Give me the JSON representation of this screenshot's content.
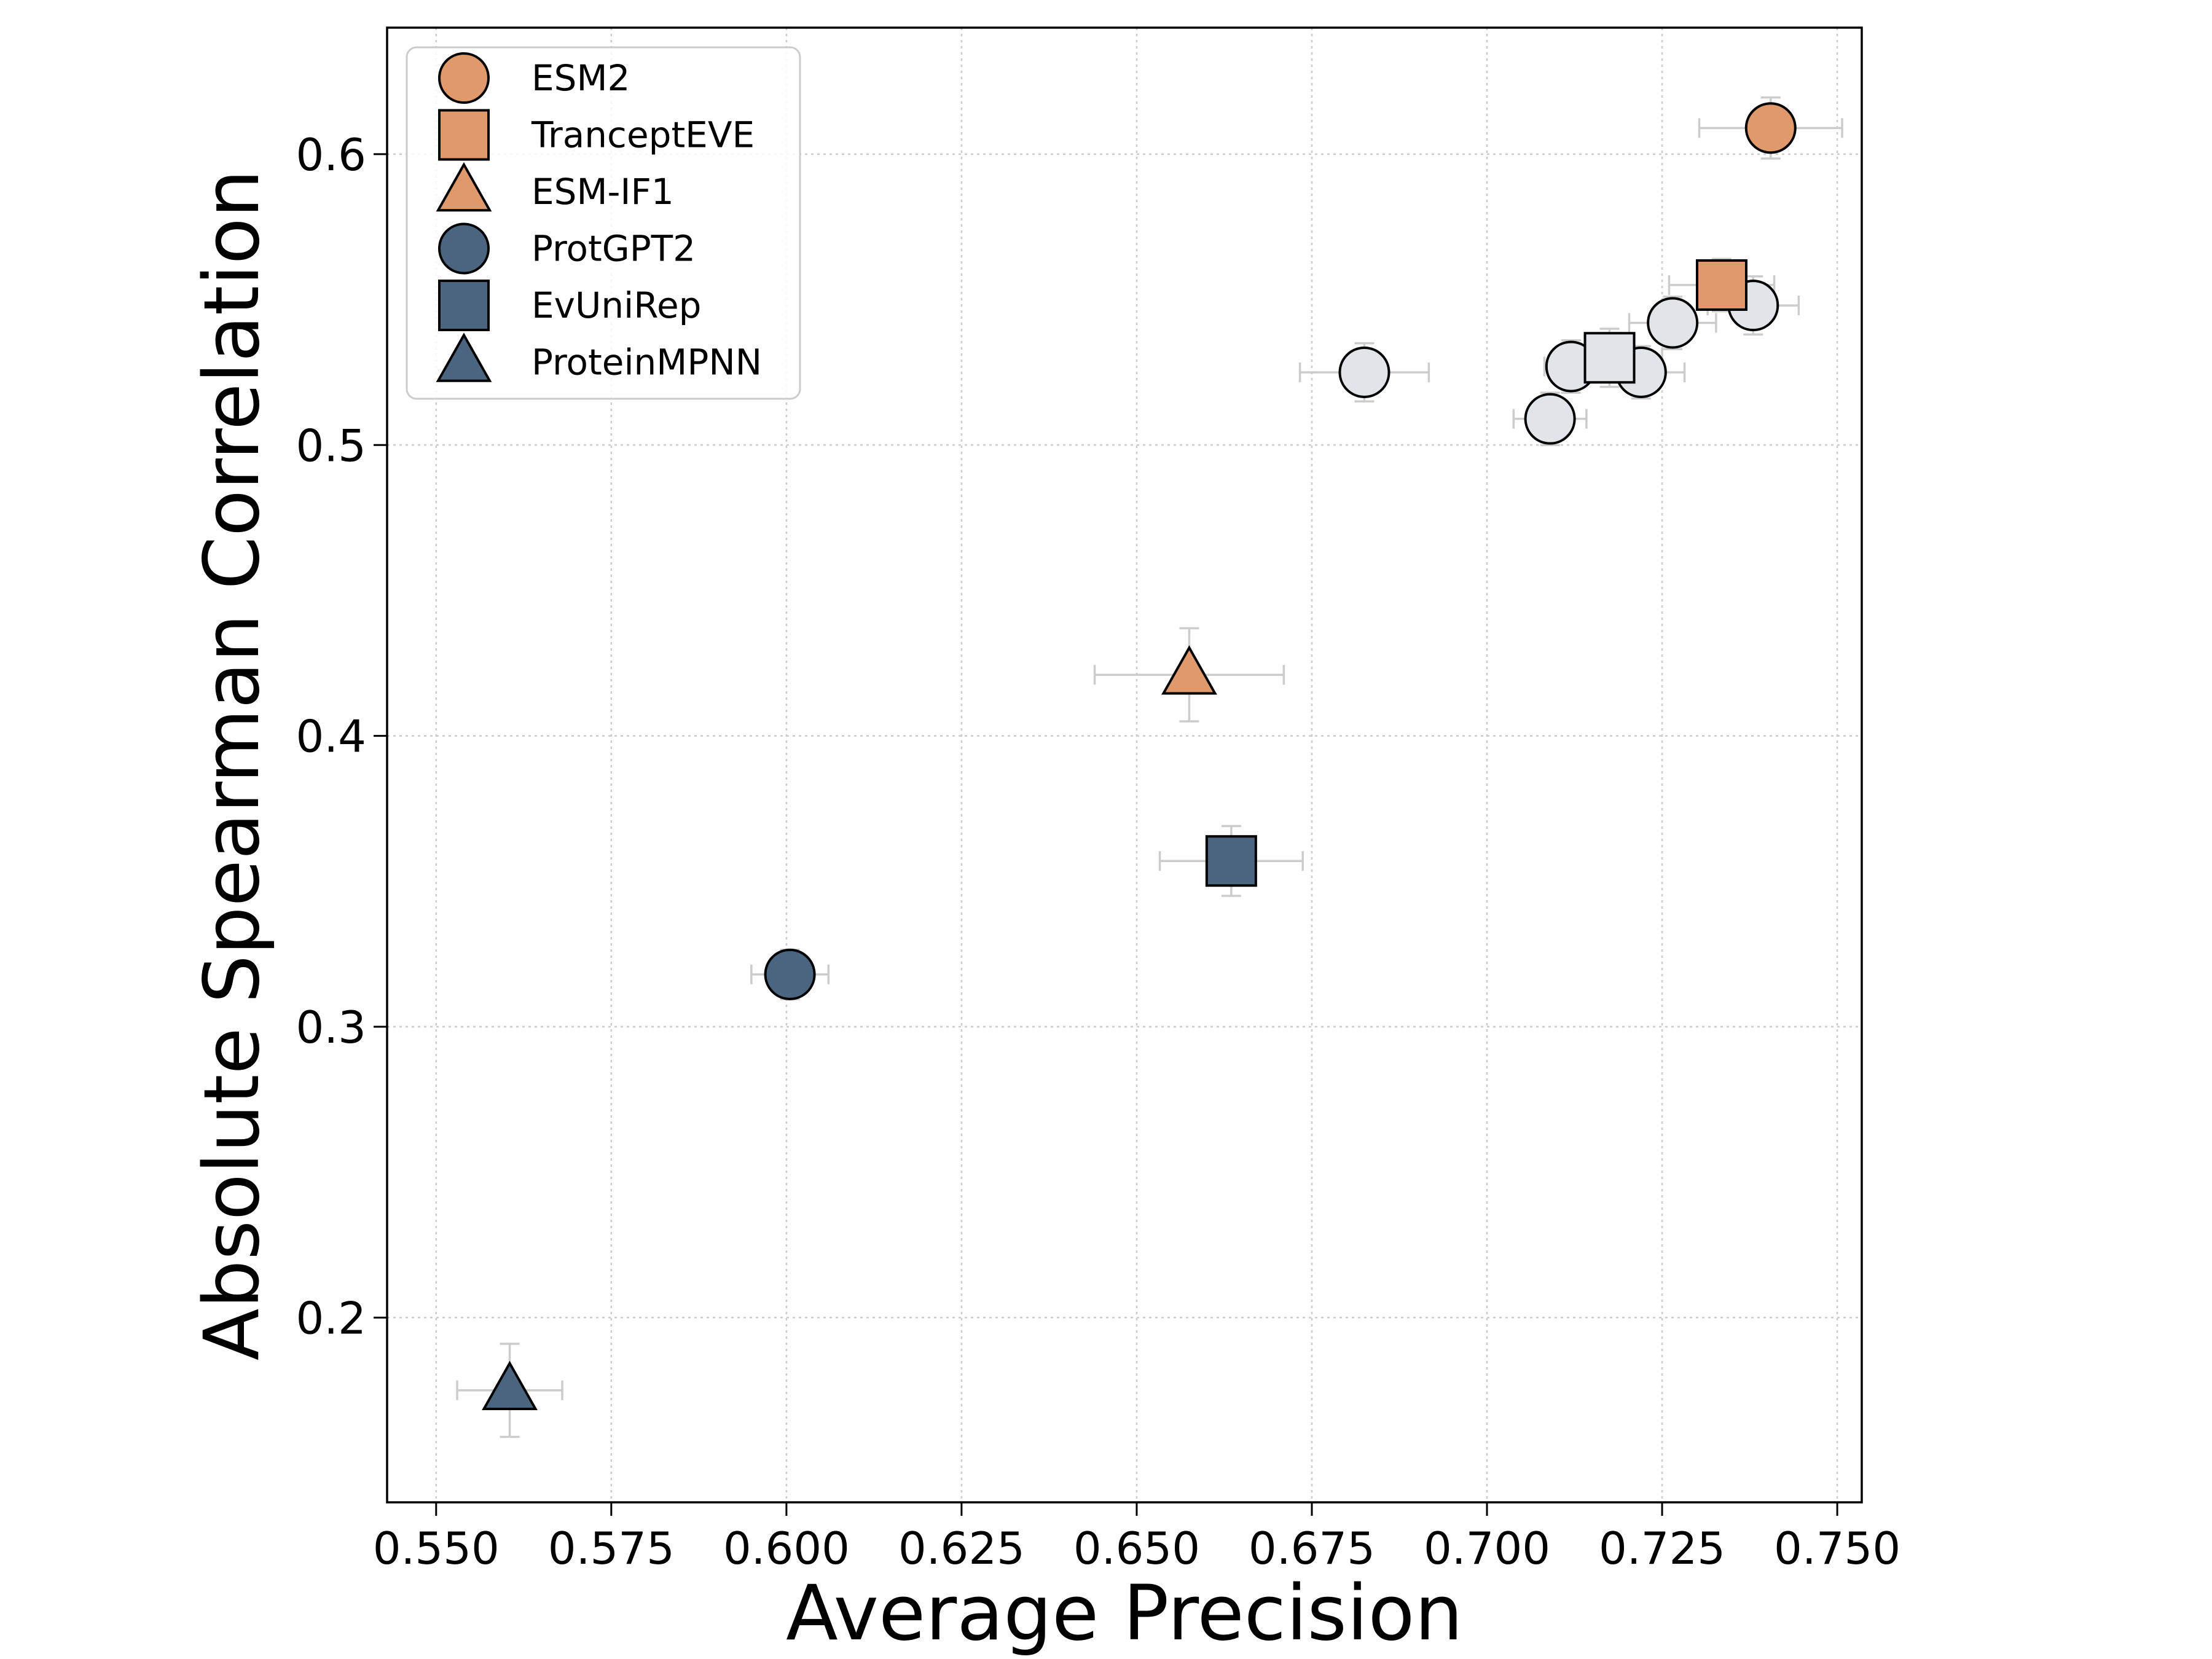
{
  "chart_data": {
    "type": "scatter",
    "xlabel": "Average Precision",
    "ylabel": "Absolute Spearman Correlation",
    "xlim": [
      0.543,
      0.7535
    ],
    "ylim": [
      0.1365,
      0.6435
    ],
    "xticks": [
      0.55,
      0.575,
      0.6,
      0.625,
      0.65,
      0.675,
      0.7,
      0.725,
      0.75
    ],
    "xtick_labels": [
      "0.550",
      "0.575",
      "0.600",
      "0.625",
      "0.650",
      "0.675",
      "0.700",
      "0.725",
      "0.750"
    ],
    "yticks": [
      0.2,
      0.3,
      0.4,
      0.5,
      0.6
    ],
    "ytick_labels": [
      "0.2",
      "0.3",
      "0.4",
      "0.5",
      "0.6"
    ],
    "grid": true,
    "legend_position": "top-left",
    "colors": {
      "orange": "#E0996A",
      "blue": "#4B6580",
      "gray": "#E1E5E9",
      "errorbar": "#CCCCCC",
      "grid": "#CCCCCC"
    },
    "series": [
      {
        "name": "ESM2",
        "marker": "circle",
        "color": "#E0996A",
        "x": 0.7405,
        "y": 0.609,
        "xerr": 0.0102,
        "yerr": 0.0105
      },
      {
        "name": "TranceptEVE",
        "marker": "square",
        "color": "#E0996A",
        "x": 0.7335,
        "y": 0.555,
        "xerr": 0.0075,
        "yerr": 0.009
      },
      {
        "name": "ESM-IF1",
        "marker": "triangle",
        "color": "#E0996A",
        "x": 0.6575,
        "y": 0.421,
        "xerr": 0.0135,
        "yerr": 0.016
      },
      {
        "name": "ProtGPT2",
        "marker": "circle",
        "color": "#4B6580",
        "x": 0.6005,
        "y": 0.318,
        "xerr": 0.0055,
        "yerr": 0.0085
      },
      {
        "name": "EvUniRep",
        "marker": "square",
        "color": "#4B6580",
        "x": 0.6635,
        "y": 0.357,
        "xerr": 0.0102,
        "yerr": 0.012
      },
      {
        "name": "ProteinMPNN",
        "marker": "triangle",
        "color": "#4B6580",
        "x": 0.5605,
        "y": 0.175,
        "xerr": 0.0075,
        "yerr": 0.016
      }
    ],
    "unlabeled_points": [
      {
        "marker": "circle",
        "x": 0.6825,
        "y": 0.525,
        "xerr": 0.0092,
        "yerr": 0.01
      },
      {
        "marker": "circle",
        "x": 0.709,
        "y": 0.509,
        "xerr": 0.0052,
        "yerr": 0.009
      },
      {
        "marker": "circle",
        "x": 0.712,
        "y": 0.527,
        "xerr": 0.0038,
        "yerr": 0.009
      },
      {
        "marker": "circle",
        "x": 0.722,
        "y": 0.525,
        "xerr": 0.0062,
        "yerr": 0.009
      },
      {
        "marker": "circle",
        "x": 0.7265,
        "y": 0.542,
        "xerr": 0.0062,
        "yerr": 0.009
      },
      {
        "marker": "circle",
        "x": 0.738,
        "y": 0.548,
        "xerr": 0.0065,
        "yerr": 0.01
      },
      {
        "marker": "square",
        "x": 0.7175,
        "y": 0.53,
        "xerr": 0.0075,
        "yerr": 0.01
      }
    ]
  }
}
